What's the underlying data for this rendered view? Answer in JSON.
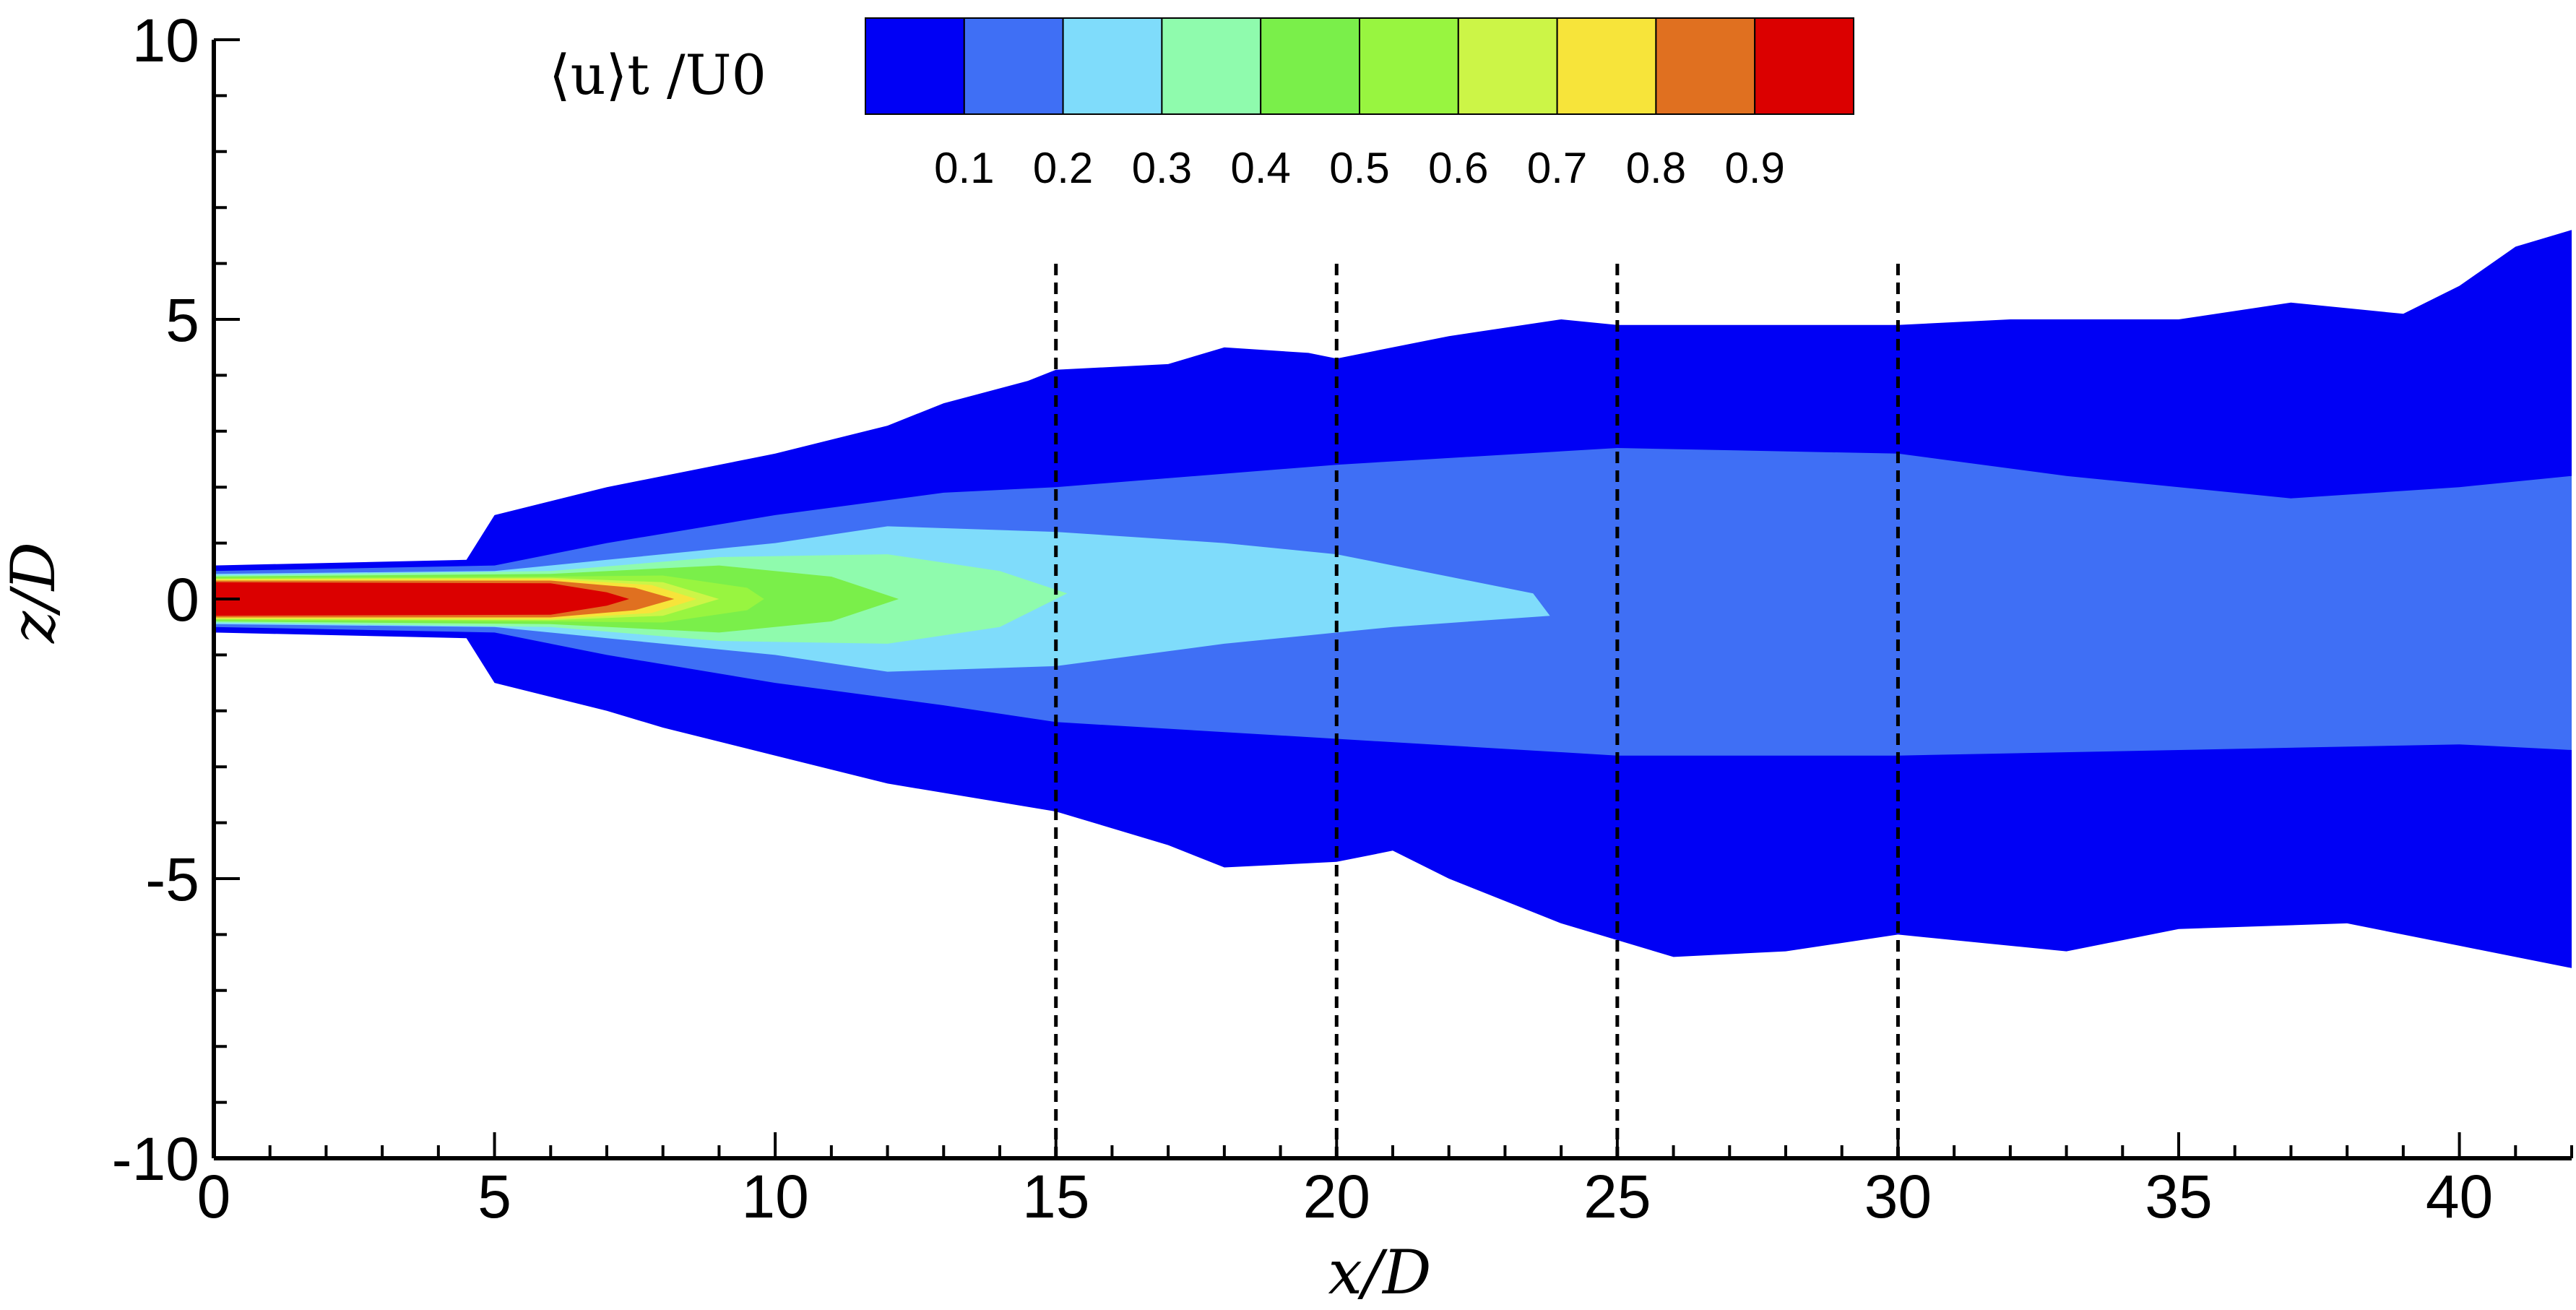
{
  "chart_data": {
    "type": "heatmap",
    "title": "",
    "xlabel": "x/D",
    "ylabel": "z/D",
    "xlim": [
      0,
      42
    ],
    "ylim": [
      -10,
      10
    ],
    "x_ticks": [
      0,
      5,
      10,
      15,
      20,
      25,
      30,
      35,
      40
    ],
    "y_ticks": [
      -10,
      -5,
      0,
      5,
      10
    ],
    "reference_lines_x": [
      15,
      20,
      25,
      30
    ],
    "colorbar": {
      "title": "⟨u⟩t /U0",
      "levels": [
        "0.1",
        "0.2",
        "0.3",
        "0.4",
        "0.5",
        "0.6",
        "0.7",
        "0.8",
        "0.9"
      ],
      "colors": [
        "#0000f5",
        "#3f6ff5",
        "#7fdcfb",
        "#8ffbad",
        "#7aef4a",
        "#98f540",
        "#ccf547",
        "#f7e43a",
        "#e07020",
        "#db0000"
      ]
    },
    "contour_bands": [
      {
        "level": 0.1,
        "color": "#0000f5",
        "upper": [
          [
            0,
            0.6
          ],
          [
            4.5,
            0.7
          ],
          [
            5,
            1.5
          ],
          [
            7,
            2.0
          ],
          [
            10,
            2.6
          ],
          [
            12,
            3.1
          ],
          [
            13,
            3.5
          ],
          [
            14.5,
            3.9
          ],
          [
            15,
            4.1
          ],
          [
            17,
            4.2
          ],
          [
            18,
            4.5
          ],
          [
            19.5,
            4.4
          ],
          [
            20,
            4.3
          ],
          [
            22,
            4.7
          ],
          [
            24,
            5.0
          ],
          [
            25,
            4.9
          ],
          [
            30,
            4.9
          ],
          [
            32,
            5.0
          ],
          [
            35,
            5.0
          ],
          [
            37,
            5.3
          ],
          [
            39,
            5.1
          ],
          [
            40,
            5.6
          ],
          [
            41,
            6.3
          ],
          [
            42,
            6.6
          ]
        ],
        "lower": [
          [
            0,
            -0.6
          ],
          [
            4.5,
            -0.7
          ],
          [
            5,
            -1.5
          ],
          [
            7,
            -2.0
          ],
          [
            8,
            -2.3
          ],
          [
            10,
            -2.8
          ],
          [
            12,
            -3.3
          ],
          [
            15,
            -3.8
          ],
          [
            17,
            -4.4
          ],
          [
            18,
            -4.8
          ],
          [
            20,
            -4.7
          ],
          [
            21,
            -4.5
          ],
          [
            22,
            -5.0
          ],
          [
            24,
            -5.8
          ],
          [
            25,
            -6.1
          ],
          [
            26,
            -6.4
          ],
          [
            28,
            -6.3
          ],
          [
            30,
            -6.0
          ],
          [
            33,
            -6.3
          ],
          [
            35,
            -5.9
          ],
          [
            38,
            -5.8
          ],
          [
            40,
            -6.2
          ],
          [
            42,
            -6.6
          ]
        ]
      },
      {
        "level": 0.2,
        "color": "#3f6ff5",
        "upper": [
          [
            0,
            0.5
          ],
          [
            5,
            0.6
          ],
          [
            7,
            1.0
          ],
          [
            10,
            1.5
          ],
          [
            13,
            1.9
          ],
          [
            15,
            2.0
          ],
          [
            20,
            2.4
          ],
          [
            25,
            2.7
          ],
          [
            30,
            2.6
          ],
          [
            33,
            2.2
          ],
          [
            35,
            2.0
          ],
          [
            37,
            1.8
          ],
          [
            40,
            2.0
          ],
          [
            42,
            2.2
          ]
        ],
        "lower": [
          [
            0,
            -0.5
          ],
          [
            5,
            -0.6
          ],
          [
            7,
            -1.0
          ],
          [
            10,
            -1.5
          ],
          [
            13,
            -1.9
          ],
          [
            15,
            -2.2
          ],
          [
            20,
            -2.5
          ],
          [
            25,
            -2.8
          ],
          [
            30,
            -2.8
          ],
          [
            35,
            -2.7
          ],
          [
            40,
            -2.6
          ],
          [
            42,
            -2.7
          ]
        ]
      },
      {
        "level": 0.3,
        "color": "#7fdcfb",
        "upper": [
          [
            0,
            0.45
          ],
          [
            5,
            0.5
          ],
          [
            7,
            0.7
          ],
          [
            10,
            1.0
          ],
          [
            12,
            1.3
          ],
          [
            15,
            1.2
          ],
          [
            18,
            1.0
          ],
          [
            20,
            0.8
          ],
          [
            22,
            0.4
          ],
          [
            23.5,
            0.1
          ],
          [
            23.8,
            -0.3
          ],
          [
            21,
            -0.5
          ],
          [
            18,
            -0.8
          ],
          [
            15,
            -1.2
          ],
          [
            12,
            -1.3
          ],
          [
            10,
            -1.0
          ],
          [
            7,
            -0.7
          ],
          [
            5,
            -0.5
          ],
          [
            0,
            -0.45
          ]
        ]
      },
      {
        "level": 0.4,
        "color": "#8ffbad",
        "upper": [
          [
            0,
            0.42
          ],
          [
            6,
            0.5
          ],
          [
            9,
            0.75
          ],
          [
            12,
            0.8
          ],
          [
            14,
            0.5
          ],
          [
            15.2,
            0.1
          ],
          [
            14,
            -0.5
          ],
          [
            12,
            -0.8
          ],
          [
            9,
            -0.75
          ],
          [
            6,
            -0.5
          ],
          [
            0,
            -0.42
          ]
        ]
      },
      {
        "level": 0.5,
        "color": "#7aef4a",
        "upper": [
          [
            0,
            0.4
          ],
          [
            6,
            0.45
          ],
          [
            9,
            0.6
          ],
          [
            11,
            0.4
          ],
          [
            12.2,
            0.0
          ],
          [
            11,
            -0.4
          ],
          [
            9,
            -0.6
          ],
          [
            6,
            -0.45
          ],
          [
            0,
            -0.4
          ]
        ]
      },
      {
        "level": 0.6,
        "color": "#98f540",
        "upper": [
          [
            0,
            0.38
          ],
          [
            6,
            0.4
          ],
          [
            8,
            0.42
          ],
          [
            9.5,
            0.2
          ],
          [
            9.8,
            0.0
          ],
          [
            9.5,
            -0.2
          ],
          [
            8,
            -0.42
          ],
          [
            6,
            -0.4
          ],
          [
            0,
            -0.38
          ]
        ]
      },
      {
        "level": 0.7,
        "color": "#ccf547",
        "upper": [
          [
            0,
            0.36
          ],
          [
            6,
            0.38
          ],
          [
            8,
            0.3
          ],
          [
            9,
            0.0
          ],
          [
            8,
            -0.3
          ],
          [
            6,
            -0.38
          ],
          [
            0,
            -0.36
          ]
        ]
      },
      {
        "level": 0.8,
        "color": "#f7e43a",
        "upper": [
          [
            0,
            0.35
          ],
          [
            6,
            0.36
          ],
          [
            7.8,
            0.25
          ],
          [
            8.6,
            0.0
          ],
          [
            7.8,
            -0.25
          ],
          [
            6,
            -0.36
          ],
          [
            0,
            -0.35
          ]
        ]
      },
      {
        "level": 0.9,
        "color": "#e07020",
        "upper": [
          [
            0,
            0.33
          ],
          [
            6,
            0.33
          ],
          [
            7.5,
            0.2
          ],
          [
            8.2,
            0.0
          ],
          [
            7.5,
            -0.2
          ],
          [
            6,
            -0.33
          ],
          [
            0,
            -0.33
          ]
        ]
      },
      {
        "level": 0.95,
        "color": "#db0000",
        "upper": [
          [
            0,
            0.3
          ],
          [
            6,
            0.28
          ],
          [
            7.0,
            0.12
          ],
          [
            7.4,
            0.0
          ],
          [
            7.0,
            -0.12
          ],
          [
            6,
            -0.28
          ],
          [
            0,
            -0.3
          ]
        ]
      }
    ]
  }
}
